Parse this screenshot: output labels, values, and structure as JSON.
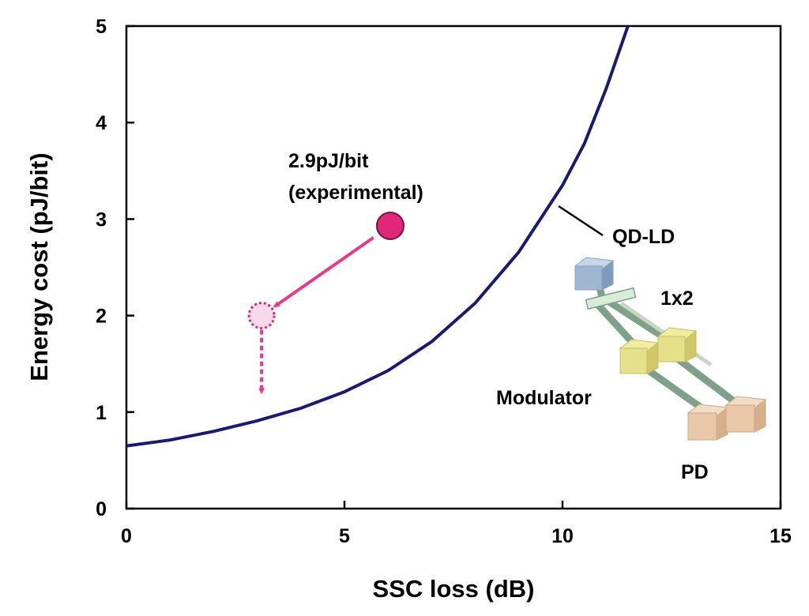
{
  "chart_data": {
    "type": "line",
    "title": "",
    "xlabel": "SSC loss (dB)",
    "ylabel": "Energy cost (pJ/bit)",
    "xlim": [
      0,
      15
    ],
    "ylim": [
      0,
      5
    ],
    "grid": false,
    "x_ticks": [
      "0",
      "5",
      "10",
      "15"
    ],
    "y_ticks": [
      "0",
      "1",
      "2",
      "3",
      "4",
      "5"
    ],
    "series": [
      {
        "name": "QD-LD",
        "color": "#1a1a6e",
        "x": [
          0,
          1,
          2,
          3,
          4,
          5,
          6,
          7,
          8,
          9,
          10,
          10.5,
          11,
          11.5
        ],
        "y": [
          0.65,
          0.71,
          0.8,
          0.91,
          1.04,
          1.21,
          1.43,
          1.73,
          2.13,
          2.66,
          3.35,
          3.78,
          4.35,
          5.0
        ]
      }
    ],
    "points": [
      {
        "name": "experimental",
        "x": 6.05,
        "y": 2.93,
        "color": "#e0287a"
      },
      {
        "name": "projected",
        "x": 3.1,
        "y": 2.0,
        "color": "#f7d9e8",
        "stroke": "#d6287a"
      }
    ],
    "projection_target": {
      "x": 3.1,
      "y": 1.2
    },
    "annotations": {
      "experimental_value": "2.9pJ/bit",
      "experimental_label": "(experimental)",
      "curve_label": "QD-LD"
    }
  },
  "diagram": {
    "splitter_label": "1x2",
    "modulator_label": "Modulator",
    "pd_label": "PD"
  }
}
